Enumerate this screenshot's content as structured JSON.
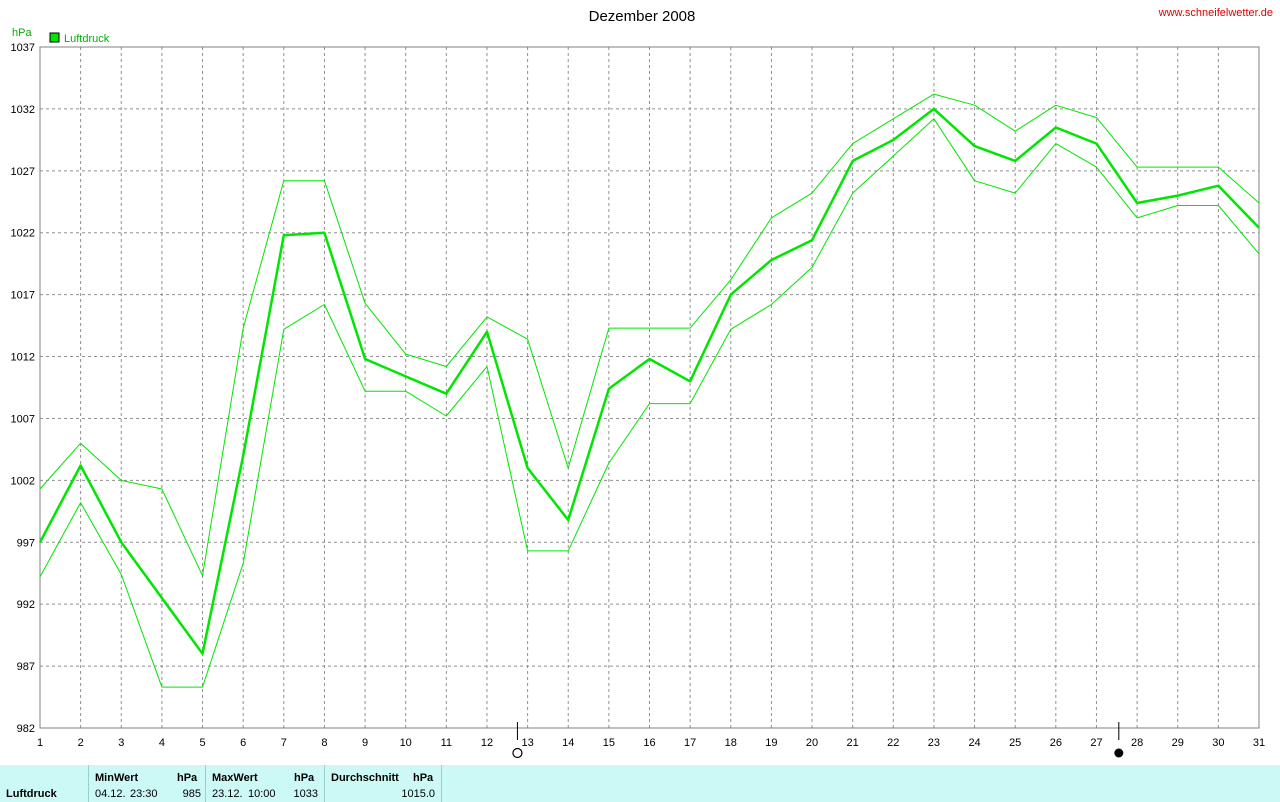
{
  "header": {
    "title": "Dezember 2008",
    "site": "www.schneifelwetter.de",
    "unit": "hPa",
    "legend_label": "Luftdruck"
  },
  "colors": {
    "series": "#00e600",
    "site": "#e00000",
    "unit": "#00b000",
    "footer_bg": "#ccf8f5"
  },
  "chart_data": {
    "type": "line",
    "title": "Dezember 2008",
    "ylabel": "hPa",
    "ylim": [
      982,
      1037
    ],
    "yticks": [
      982,
      987,
      992,
      997,
      1002,
      1007,
      1012,
      1017,
      1022,
      1027,
      1032,
      1037
    ],
    "x": [
      1,
      2,
      3,
      4,
      5,
      6,
      7,
      8,
      9,
      10,
      11,
      12,
      13,
      14,
      15,
      16,
      17,
      18,
      19,
      20,
      21,
      22,
      23,
      24,
      25,
      26,
      27,
      28,
      29,
      30,
      31
    ],
    "grid": true,
    "legend": "top-left",
    "moon_markers": [
      {
        "icon": "full-moon-icon",
        "day": 12.75
      },
      {
        "icon": "new-moon-icon",
        "day": 27.55
      }
    ],
    "series": [
      {
        "name": "Luftdruck",
        "role": "mean",
        "values": [
          997,
          1003.2,
          997,
          992.5,
          988,
          1004,
          1021.8,
          1022,
          1011.8,
          1010.4,
          1009,
          1014,
          1003,
          998.8,
          1009.4,
          1011.8,
          1010,
          1017,
          1019.8,
          1021.4,
          1027.8,
          1029.5,
          1032,
          1029,
          1027.8,
          1030.5,
          1029.2,
          1024.4,
          1025,
          1025.8,
          1022.4
        ]
      },
      {
        "role": "max",
        "values": [
          1001.3,
          1005,
          1002,
          1001.3,
          994.3,
          1014.3,
          1026.2,
          1026.2,
          1016.3,
          1012.2,
          1011.2,
          1015.2,
          1013.4,
          1003,
          1014.3,
          1014.3,
          1014.3,
          1018.2,
          1023.2,
          1025.2,
          1029.2,
          1031.2,
          1033.2,
          1032.3,
          1030.2,
          1032.3,
          1031.3,
          1027.3,
          1027.3,
          1027.3,
          1024.4
        ]
      },
      {
        "role": "min",
        "values": [
          994.2,
          1000.2,
          994.4,
          985.3,
          985.3,
          995.3,
          1014.2,
          1016.2,
          1009.2,
          1009.2,
          1007.2,
          1011.2,
          996.3,
          996.3,
          1003.4,
          1008.2,
          1008.2,
          1014.2,
          1016.2,
          1019.2,
          1025.2,
          1028.2,
          1031.2,
          1026.2,
          1025.2,
          1029.2,
          1027.3,
          1023.2,
          1024.2,
          1024.2,
          1020.3
        ]
      }
    ]
  },
  "footer": {
    "row_label": "Luftdruck",
    "min_header": "MinWert",
    "min_unit": "hPa",
    "min_date": "04.12.",
    "min_time": "23:30",
    "min_value": "985",
    "max_header": "MaxWert",
    "max_unit": "hPa",
    "max_date": "23.12.",
    "max_time": "10:00",
    "max_value": "1033",
    "avg_header": "Durchschnitt",
    "avg_unit": "hPa",
    "avg_value": "1015.0"
  }
}
